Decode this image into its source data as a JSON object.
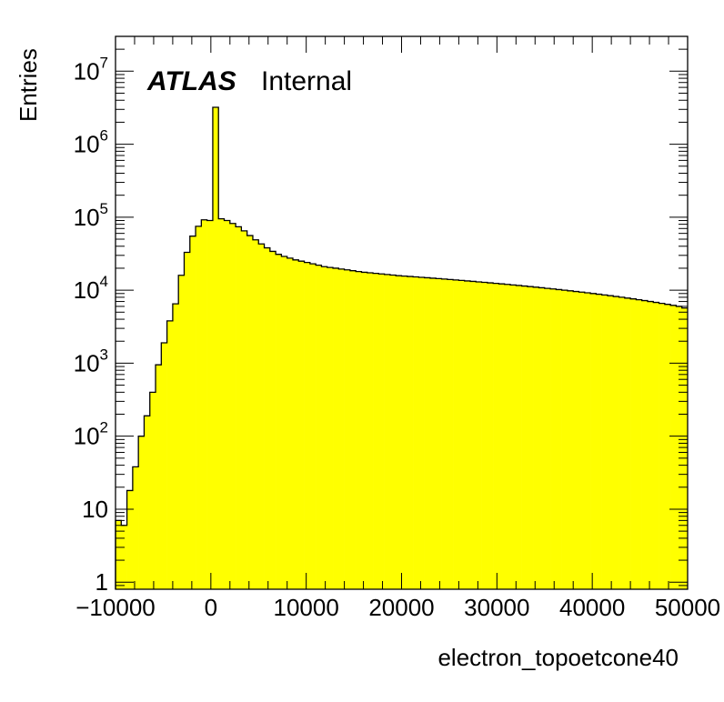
{
  "chart_data": {
    "type": "bar",
    "subtype": "histogram",
    "log_scale_y": true,
    "xlabel": "electron_topoetcone40",
    "ylabel": "Entries",
    "atlas_label": "ATLAS",
    "atlas_status": "Internal",
    "xlim": [
      -10000,
      50000
    ],
    "ylim": [
      0.8,
      30000000
    ],
    "fill_color": "#ffff00",
    "line_color": "#000000",
    "bin_width": 600,
    "x_ticks": [
      {
        "value": -10000,
        "label": "−10000"
      },
      {
        "value": 0,
        "label": "0"
      },
      {
        "value": 10000,
        "label": "10000"
      },
      {
        "value": 20000,
        "label": "20000"
      },
      {
        "value": 30000,
        "label": "30000"
      },
      {
        "value": 40000,
        "label": "40000"
      },
      {
        "value": 50000,
        "label": "50000"
      }
    ],
    "y_ticks": [
      {
        "value": 1,
        "base": "1",
        "exp": ""
      },
      {
        "value": 10,
        "base": "10",
        "exp": ""
      },
      {
        "value": 100,
        "base": "10",
        "exp": "2"
      },
      {
        "value": 1000,
        "base": "10",
        "exp": "3"
      },
      {
        "value": 10000,
        "base": "10",
        "exp": "4"
      },
      {
        "value": 100000,
        "base": "10",
        "exp": "5"
      },
      {
        "value": 1000000,
        "base": "10",
        "exp": "6"
      },
      {
        "value": 10000000,
        "base": "10",
        "exp": "7"
      }
    ],
    "values": [
      7,
      6,
      18,
      38,
      100,
      190,
      400,
      950,
      1900,
      3800,
      6500,
      16000,
      33000,
      55000,
      75000,
      92000,
      90000,
      3200000,
      95000,
      90000,
      82000,
      74000,
      65000,
      56000,
      49000,
      43000,
      38000,
      34000,
      31000,
      29000,
      27500,
      26000,
      25000,
      24000,
      23000,
      22000,
      21000,
      20500,
      20000,
      19500,
      19000,
      18500,
      18000,
      17600,
      17300,
      17000,
      16700,
      16400,
      16100,
      15800,
      15600,
      15400,
      15200,
      15000,
      14800,
      14600,
      14400,
      14200,
      14000,
      13800,
      13600,
      13400,
      13200,
      13000,
      12800,
      12600,
      12400,
      12200,
      12000,
      11800,
      11600,
      11400,
      11200,
      11000,
      10800,
      10600,
      10400,
      10200,
      10000,
      9800,
      9600,
      9400,
      9200,
      9000,
      8800,
      8600,
      8400,
      8200,
      8000,
      7800,
      7600,
      7400,
      7200,
      7000,
      6800,
      6600,
      6400,
      6200,
      6000,
      5700
    ]
  }
}
